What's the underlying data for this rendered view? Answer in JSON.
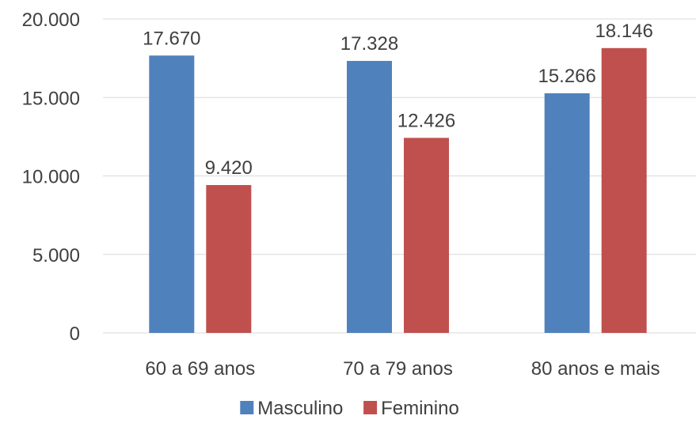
{
  "chart_data": {
    "type": "bar",
    "categories": [
      "60 a 69 anos",
      "70 a 79 anos",
      "80 anos e mais"
    ],
    "series": [
      {
        "name": "Masculino",
        "color": "#4f81bd",
        "values": [
          17670,
          17328,
          15266
        ],
        "labels": [
          "17.670",
          "17.328",
          "15.266"
        ]
      },
      {
        "name": "Feminino",
        "color": "#c0504d",
        "values": [
          9420,
          12426,
          18146
        ],
        "labels": [
          "9.420",
          "12.426",
          "18.146"
        ]
      }
    ],
    "ylim": [
      0,
      20000
    ],
    "y_ticks": [
      0,
      5000,
      10000,
      15000,
      20000
    ],
    "y_tick_labels": [
      "0",
      "5.000",
      "10.000",
      "15.000",
      "20.000"
    ],
    "grid": true,
    "legend_position": "bottom",
    "title": "",
    "xlabel": "",
    "ylabel": ""
  }
}
